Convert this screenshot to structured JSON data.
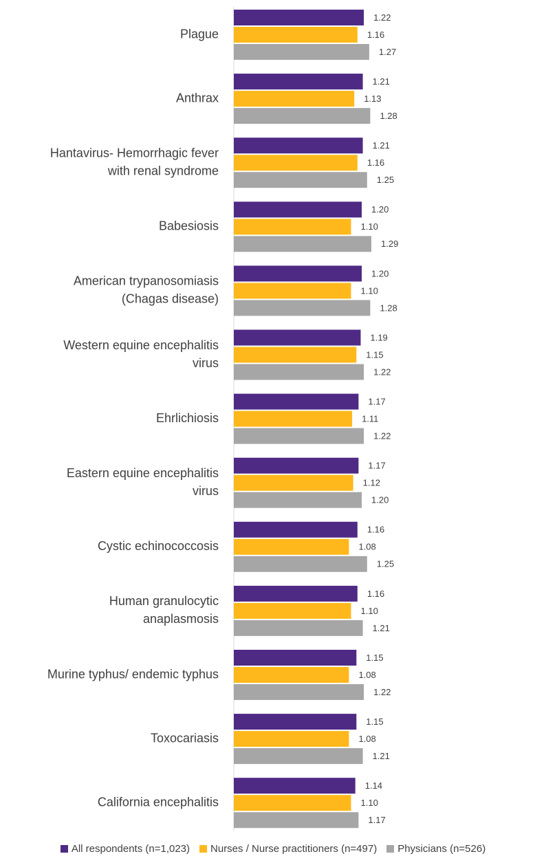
{
  "chart_data": {
    "type": "bar",
    "orientation": "horizontal",
    "categories": [
      "Plague",
      "Anthrax",
      "Hantavirus- Hemorrhagic fever with renal syndrome",
      "Babesiosis",
      "American trypanosomiasis (Chagas disease)",
      "Western equine encephalitis virus",
      "Ehrlichiosis",
      "Eastern equine encephalitis virus",
      "Cystic echinococcosis",
      "Human granulocytic anaplasmosis",
      "Murine typhus/ endemic typhus",
      "Toxocariasis",
      "California encephalitis"
    ],
    "category_lines": [
      [
        "Plague"
      ],
      [
        "Anthrax"
      ],
      [
        "Hantavirus- Hemorrhagic fever",
        "with renal syndrome"
      ],
      [
        "Babesiosis"
      ],
      [
        "American trypanosomiasis",
        "(Chagas disease)"
      ],
      [
        "Western equine encephalitis",
        "virus"
      ],
      [
        "Ehrlichiosis"
      ],
      [
        "Eastern equine encephalitis",
        "virus"
      ],
      [
        "Cystic echinococcosis"
      ],
      [
        "Human granulocytic",
        "anaplasmosis"
      ],
      [
        "Murine typhus/ endemic typhus"
      ],
      [
        "Toxocariasis"
      ],
      [
        "California encephalitis"
      ]
    ],
    "series": [
      {
        "name": "All respondents (n=1,023)",
        "color": "#4e2a84",
        "values": [
          1.22,
          1.21,
          1.21,
          1.2,
          1.2,
          1.19,
          1.17,
          1.17,
          1.16,
          1.16,
          1.15,
          1.15,
          1.14
        ],
        "labels": [
          "1.22",
          "1.21",
          "1.21",
          "1.20",
          "1.20",
          "1.19",
          "1.17",
          "1.17",
          "1.16",
          "1.16",
          "1.15",
          "1.15",
          "1.14"
        ]
      },
      {
        "name": "Nurses / Nurse practitioners (n=497)",
        "color": "#ffb81c",
        "values": [
          1.16,
          1.13,
          1.16,
          1.1,
          1.1,
          1.15,
          1.11,
          1.12,
          1.08,
          1.1,
          1.08,
          1.08,
          1.1
        ],
        "labels": [
          "1.16",
          "1.13",
          "1.16",
          "1.10",
          "1.10",
          "1.15",
          "1.11",
          "1.12",
          "1.08",
          "1.10",
          "1.08",
          "1.08",
          "1.10"
        ]
      },
      {
        "name": "Physicians (n=526)",
        "color": "#a6a6a6",
        "values": [
          1.27,
          1.28,
          1.25,
          1.29,
          1.28,
          1.22,
          1.22,
          1.2,
          1.25,
          1.21,
          1.22,
          1.21,
          1.17
        ],
        "labels": [
          "1.27",
          "1.28",
          "1.25",
          "1.29",
          "1.28",
          "1.22",
          "1.22",
          "1.20",
          "1.25",
          "1.21",
          "1.22",
          "1.21",
          "1.17"
        ]
      }
    ],
    "title": "",
    "xlabel": "",
    "ylabel": "",
    "xlim": [
      0,
      1.29
    ],
    "grid": false,
    "legend_position": "bottom"
  },
  "legend": {
    "items": [
      {
        "label": "All respondents (n=1,023)",
        "color": "#4e2a84"
      },
      {
        "label": "Nurses / Nurse practitioners (n=497)",
        "color": "#ffb81c"
      },
      {
        "label": "Physicians (n=526)",
        "color": "#a6a6a6"
      }
    ]
  }
}
